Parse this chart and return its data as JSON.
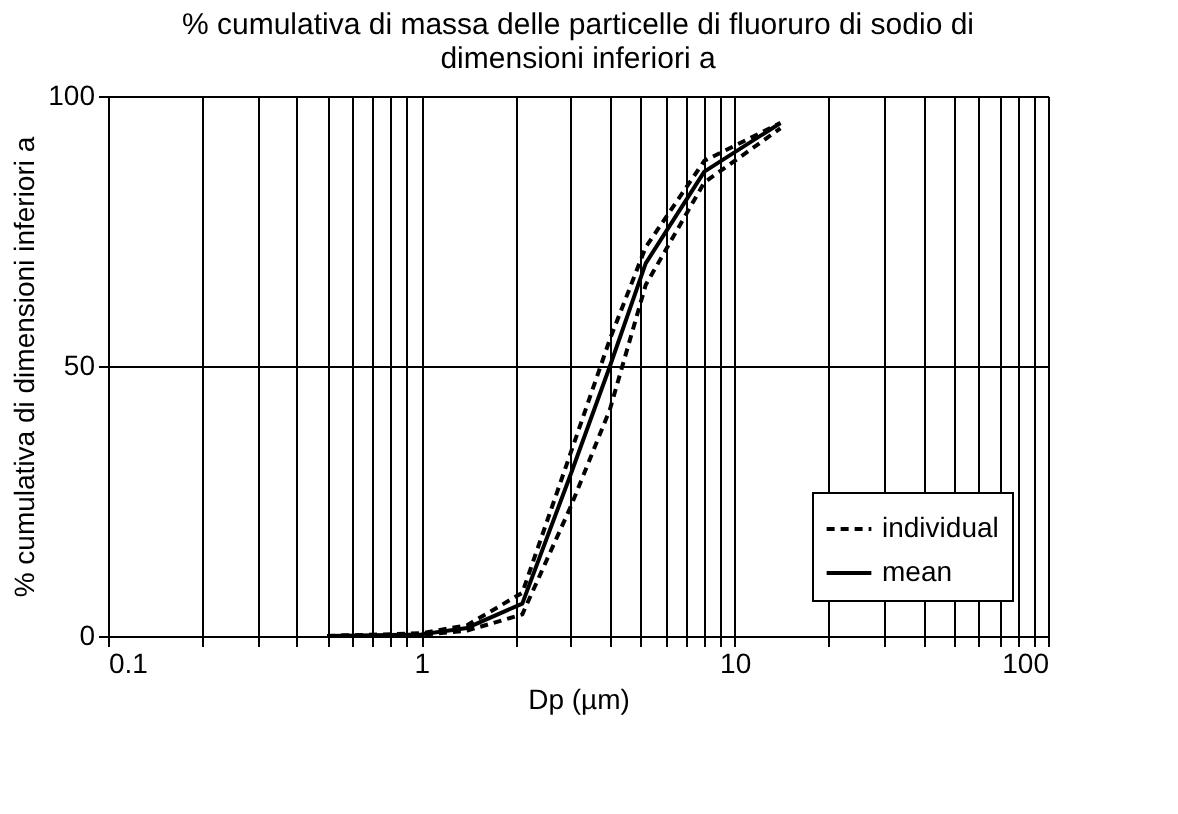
{
  "chart_data": {
    "type": "line",
    "title": "% cumulativa di massa delle particelle di fluoruro di sodio di dimensioni inferiori a",
    "xlabel": "Dp (µm)",
    "ylabel": "% cumulativa di dimensioni inferiori a",
    "x": [
      0.5,
      1,
      1.4,
      2.1,
      3,
      4,
      5.2,
      8,
      14
    ],
    "series": [
      {
        "name": "individual",
        "color": "#000000",
        "line_style": "dashed",
        "values": [
          0,
          0.5,
          2,
          8,
          34,
          55,
          72,
          88,
          95
        ]
      },
      {
        "color": "#000000",
        "line_style": "dashed",
        "values": [
          0,
          0.2,
          1,
          4,
          24,
          42,
          65,
          84,
          94
        ]
      },
      {
        "name": "mean",
        "color": "#000000",
        "line_style": "solid",
        "values": [
          0,
          0.3,
          1.5,
          6,
          30,
          50,
          69,
          86,
          95
        ]
      }
    ],
    "log": "x",
    "xlim": [
      0.1,
      100
    ],
    "xticks": [
      0.1,
      {
        "value": 0.2,
        "label": null
      },
      {
        "value": 0.3,
        "label": null
      },
      {
        "value": 0.4,
        "label": null
      },
      {
        "value": 0.5,
        "label": null
      },
      {
        "value": 0.6,
        "label": null
      },
      {
        "value": 0.7,
        "label": null
      },
      {
        "value": 0.8,
        "label": null
      },
      {
        "value": 0.9,
        "label": null
      },
      1,
      {
        "value": 2,
        "label": null
      },
      {
        "value": 3,
        "label": null
      },
      {
        "value": 4,
        "label": null
      },
      {
        "value": 5,
        "label": null
      },
      {
        "value": 6,
        "label": null
      },
      {
        "value": 7,
        "label": null
      },
      {
        "value": 8,
        "label": null
      },
      {
        "value": 9,
        "label": null
      },
      10,
      {
        "value": 20,
        "label": null
      },
      {
        "value": 30,
        "label": null
      },
      {
        "value": 40,
        "label": null
      },
      {
        "value": 50,
        "label": null
      },
      {
        "value": 60,
        "label": null
      },
      {
        "value": 70,
        "label": null
      },
      {
        "value": 80,
        "label": null
      },
      {
        "value": 90,
        "label": null
      },
      100
    ],
    "ylim": [
      0,
      100
    ],
    "yticks": [
      0,
      50,
      100
    ],
    "grid": true,
    "legend": "bottom right"
  }
}
